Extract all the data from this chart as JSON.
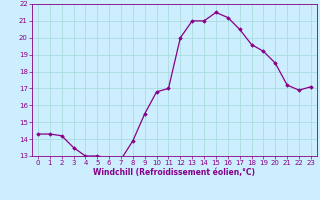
{
  "x": [
    0,
    1,
    2,
    3,
    4,
    5,
    6,
    7,
    8,
    9,
    10,
    11,
    12,
    13,
    14,
    15,
    16,
    17,
    18,
    19,
    20,
    21,
    22,
    23
  ],
  "y": [
    14.3,
    14.3,
    14.2,
    13.5,
    13.0,
    13.0,
    12.9,
    12.8,
    13.9,
    15.5,
    16.8,
    17.0,
    20.0,
    21.0,
    21.0,
    21.5,
    21.2,
    20.5,
    19.6,
    19.2,
    18.5,
    17.2,
    16.9,
    17.1
  ],
  "xlabel": "Windchill (Refroidissement éolien,°C)",
  "ylim": [
    13,
    22
  ],
  "xlim": [
    -0.5,
    23.5
  ],
  "yticks": [
    13,
    14,
    15,
    16,
    17,
    18,
    19,
    20,
    21,
    22
  ],
  "xticks": [
    0,
    1,
    2,
    3,
    4,
    5,
    6,
    7,
    8,
    9,
    10,
    11,
    12,
    13,
    14,
    15,
    16,
    17,
    18,
    19,
    20,
    21,
    22,
    23
  ],
  "line_color": "#880088",
  "marker": "D",
  "marker_size": 1.8,
  "bg_color": "#cceeff",
  "grid_color": "#aadddd",
  "label_color": "#880088",
  "tick_color": "#880088",
  "xlabel_fontsize": 5.5,
  "tick_fontsize": 5.0,
  "linewidth": 0.9
}
